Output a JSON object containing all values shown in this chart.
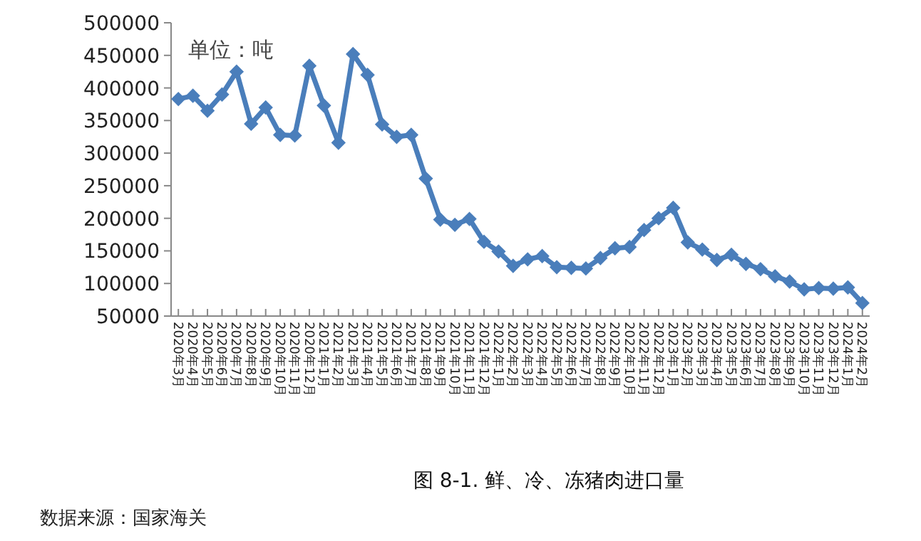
{
  "chart_data": {
    "type": "line",
    "title": "图 8-1. 鲜、冷、冻猪肉进口量",
    "categories": [
      "2020年3月",
      "2020年4月",
      "2020年5月",
      "2020年6月",
      "2020年7月",
      "2020年8月",
      "2020年9月",
      "2020年10月",
      "2020年11月",
      "2020年12月",
      "2021年1月",
      "2021年2月",
      "2021年3月",
      "2021年4月",
      "2021年5月",
      "2021年6月",
      "2021年7月",
      "2021年8月",
      "2021年9月",
      "2021年10月",
      "2021年11月",
      "2021年12月",
      "2022年1月",
      "2022年2月",
      "2022年3月",
      "2022年4月",
      "2022年5月",
      "2022年6月",
      "2022年7月",
      "2022年8月",
      "2022年9月",
      "2022年10月",
      "2022年11月",
      "2022年12月",
      "2023年1月",
      "2023年2月",
      "2023年3月",
      "2023年4月",
      "2023年5月",
      "2023年6月",
      "2023年7月",
      "2023年8月",
      "2023年9月",
      "2023年10月",
      "2023年11月",
      "2023年12月",
      "2024年1月",
      "2024年2月"
    ],
    "series": [
      {
        "color": "#4a7ebb",
        "values": [
          383000,
          388000,
          365000,
          390000,
          425000,
          345000,
          370000,
          328000,
          327000,
          434000,
          373000,
          316000,
          452000,
          420000,
          344000,
          325000,
          328000,
          261000,
          198000,
          190000,
          199000,
          164000,
          149000,
          127000,
          137000,
          142000,
          125000,
          124000,
          123000,
          139000,
          154000,
          156000,
          182000,
          200000,
          216000,
          163000,
          152000,
          136000,
          144000,
          130000,
          122000,
          111000,
          103000,
          91000,
          93000,
          92000,
          94000,
          70000
        ]
      }
    ],
    "ylim": [
      50000,
      500000
    ],
    "yticks": [
      50000,
      100000,
      150000,
      200000,
      250000,
      300000,
      350000,
      400000,
      450000,
      500000
    ],
    "marker": "diamond",
    "line_style": "solid",
    "grid": false,
    "annotations": [
      "单位：吨",
      "数据来源：国家海关"
    ]
  }
}
